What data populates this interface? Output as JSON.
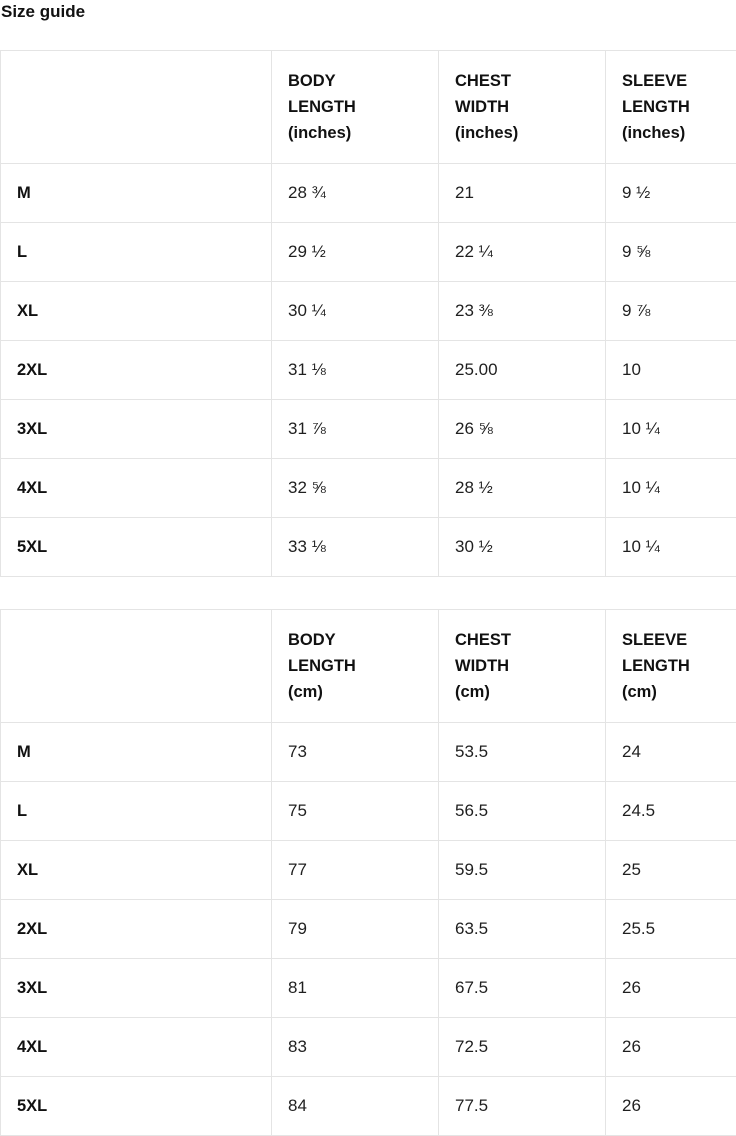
{
  "page": {
    "title": "Size guide"
  },
  "colors": {
    "background": "#ffffff",
    "border": "#e4e4e4",
    "text": "#111111"
  },
  "tables": [
    {
      "name": "size-guide-inches",
      "corner_label": "",
      "columns": [
        "BODY\nLENGTH\n(inches)",
        "CHEST\nWIDTH\n(inches)",
        "SLEEVE\nLENGTH\n(inches)"
      ],
      "rows": [
        {
          "size": "M",
          "values": [
            "28 ¾",
            "21",
            "9 ½"
          ]
        },
        {
          "size": "L",
          "values": [
            "29 ½",
            "22 ¼",
            "9 ⅝"
          ]
        },
        {
          "size": "XL",
          "values": [
            "30 ¼",
            "23 ⅜",
            "9 ⅞"
          ]
        },
        {
          "size": "2XL",
          "values": [
            "31 ⅛",
            "25.00",
            "10"
          ]
        },
        {
          "size": "3XL",
          "values": [
            "31 ⅞",
            "26 ⅝",
            "10 ¼"
          ]
        },
        {
          "size": "4XL",
          "values": [
            "32 ⅝",
            "28 ½",
            "10 ¼"
          ]
        },
        {
          "size": "5XL",
          "values": [
            "33 ⅛",
            "30 ½",
            "10 ¼"
          ]
        }
      ]
    },
    {
      "name": "size-guide-cm",
      "corner_label": "",
      "columns": [
        "BODY\nLENGTH\n(cm)",
        "CHEST\nWIDTH\n(cm)",
        "SLEEVE\nLENGTH\n(cm)"
      ],
      "rows": [
        {
          "size": "M",
          "values": [
            "73",
            "53.5",
            "24"
          ]
        },
        {
          "size": "L",
          "values": [
            "75",
            "56.5",
            "24.5"
          ]
        },
        {
          "size": "XL",
          "values": [
            "77",
            "59.5",
            "25"
          ]
        },
        {
          "size": "2XL",
          "values": [
            "79",
            "63.5",
            "25.5"
          ]
        },
        {
          "size": "3XL",
          "values": [
            "81",
            "67.5",
            "26"
          ]
        },
        {
          "size": "4XL",
          "values": [
            "83",
            "72.5",
            "26"
          ]
        },
        {
          "size": "5XL",
          "values": [
            "84",
            "77.5",
            "26"
          ]
        }
      ]
    }
  ]
}
